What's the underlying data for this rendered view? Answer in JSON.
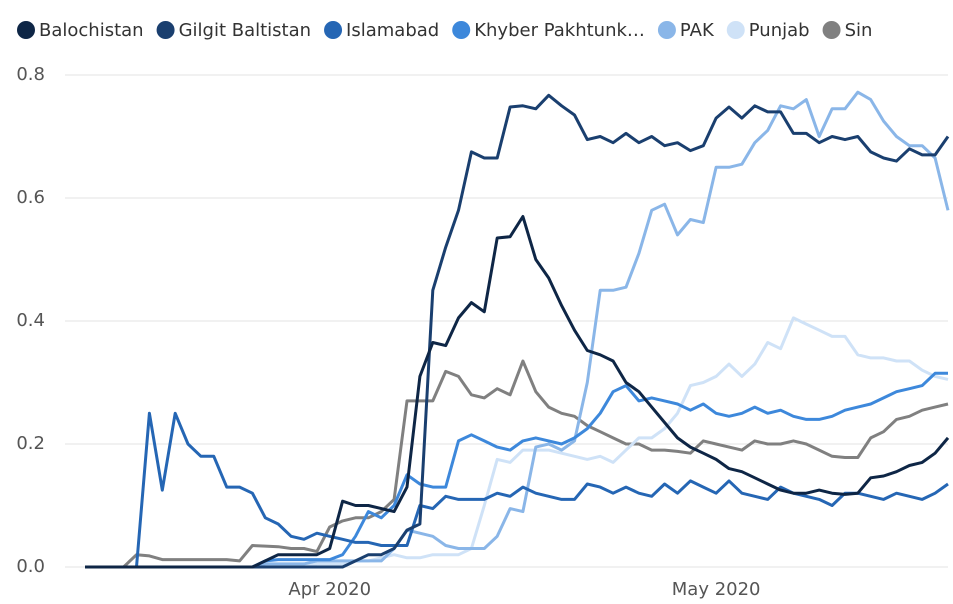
{
  "chart_data": {
    "type": "line",
    "categories": [
      null,
      null,
      null,
      null,
      null,
      null,
      null,
      null,
      null,
      null,
      null,
      null,
      null,
      null,
      null,
      null,
      null,
      null,
      null,
      "Apr 2020",
      null,
      null,
      null,
      null,
      null,
      null,
      null,
      null,
      null,
      null,
      null,
      null,
      null,
      null,
      null,
      null,
      null,
      null,
      null,
      null,
      null,
      null,
      null,
      null,
      null,
      null,
      null,
      null,
      null,
      "May 2020",
      null,
      null,
      null,
      null,
      null,
      null,
      null,
      null,
      null,
      null,
      null,
      null,
      null,
      null,
      null,
      null,
      null,
      null
    ],
    "series": [
      {
        "name": "Balochistan",
        "color": "#0e2646",
        "values": [
          0,
          0,
          0,
          0,
          0,
          0,
          0,
          0,
          0,
          0,
          0,
          0,
          0,
          0,
          0.01,
          0.02,
          0.02,
          0.02,
          0.02,
          0.03,
          0.107,
          0.1,
          0.1,
          0.095,
          0.09,
          0.13,
          0.31,
          0.365,
          0.36,
          0.405,
          0.43,
          0.415,
          0.535,
          0.537,
          0.57,
          0.5,
          0.47,
          0.425,
          0.385,
          0.352,
          0.345,
          0.335,
          0.3,
          0.285,
          0.26,
          0.235,
          0.21,
          0.195,
          0.185,
          0.175,
          0.16,
          0.155,
          0.145,
          0.135,
          0.125,
          0.12,
          0.12,
          0.125,
          0.12,
          0.118,
          0.12,
          0.145,
          0.148,
          0.155,
          0.165,
          0.17,
          0.185,
          0.21
        ]
      },
      {
        "name": "Gilgit Baltistan",
        "color": "#1a3f6f",
        "values": [
          0,
          0,
          0,
          0,
          0,
          0,
          0,
          0,
          0,
          0,
          0,
          0,
          0,
          0,
          0,
          0,
          0,
          0,
          0,
          0,
          0,
          0.01,
          0.02,
          0.02,
          0.03,
          0.06,
          0.07,
          0.45,
          0.52,
          0.58,
          0.675,
          0.665,
          0.665,
          0.748,
          0.75,
          0.745,
          0.767,
          0.75,
          0.735,
          0.695,
          0.7,
          0.69,
          0.705,
          0.69,
          0.7,
          0.685,
          0.69,
          0.677,
          0.685,
          0.73,
          0.748,
          0.73,
          0.75,
          0.74,
          0.74,
          0.705,
          0.705,
          0.69,
          0.7,
          0.695,
          0.7,
          0.675,
          0.665,
          0.66,
          0.68,
          0.67,
          0.67,
          0.7
        ]
      },
      {
        "name": "Islamabad",
        "color": "#2566b4",
        "values": [
          0,
          0,
          0,
          0,
          0,
          0.25,
          0.125,
          0.25,
          0.2,
          0.18,
          0.18,
          0.13,
          0.13,
          0.12,
          0.08,
          0.07,
          0.05,
          0.045,
          0.055,
          0.05,
          0.045,
          0.04,
          0.04,
          0.035,
          0.035,
          0.035,
          0.1,
          0.095,
          0.115,
          0.11,
          0.11,
          0.11,
          0.12,
          0.115,
          0.13,
          0.12,
          0.115,
          0.11,
          0.11,
          0.135,
          0.13,
          0.12,
          0.13,
          0.12,
          0.115,
          0.135,
          0.12,
          0.14,
          0.13,
          0.12,
          0.14,
          0.12,
          0.115,
          0.11,
          0.13,
          0.12,
          0.115,
          0.11,
          0.1,
          0.12,
          0.12,
          0.115,
          0.11,
          0.12,
          0.115,
          0.11,
          0.12,
          0.135
        ]
      },
      {
        "name": "Khyber Pakhtunk…",
        "color": "#3d88db",
        "values": [
          0,
          0,
          0,
          0,
          0,
          0,
          0,
          0,
          0,
          0,
          0,
          0,
          0,
          0,
          0.01,
          0.012,
          0.012,
          0.012,
          0.012,
          0.012,
          0.02,
          0.05,
          0.09,
          0.08,
          0.1,
          0.15,
          0.135,
          0.13,
          0.13,
          0.205,
          0.215,
          0.205,
          0.195,
          0.19,
          0.205,
          0.21,
          0.205,
          0.2,
          0.21,
          0.225,
          0.25,
          0.285,
          0.295,
          0.27,
          0.275,
          0.27,
          0.265,
          0.255,
          0.265,
          0.25,
          0.245,
          0.25,
          0.26,
          0.25,
          0.255,
          0.245,
          0.24,
          0.24,
          0.245,
          0.255,
          0.26,
          0.265,
          0.275,
          0.285,
          0.29,
          0.295,
          0.315,
          0.315
        ]
      },
      {
        "name": "PAK",
        "color": "#8ab6e8",
        "values": [
          0,
          0,
          0,
          0,
          0,
          0,
          0,
          0,
          0,
          0,
          0,
          0,
          0,
          0,
          0.005,
          0.005,
          0.005,
          0.005,
          0.01,
          0.01,
          0.01,
          0.01,
          0.01,
          0.01,
          0.03,
          0.06,
          0.055,
          0.05,
          0.035,
          0.03,
          0.03,
          0.03,
          0.05,
          0.095,
          0.09,
          0.195,
          0.2,
          0.19,
          0.205,
          0.3,
          0.45,
          0.45,
          0.455,
          0.51,
          0.58,
          0.59,
          0.54,
          0.565,
          0.56,
          0.65,
          0.65,
          0.655,
          0.69,
          0.71,
          0.75,
          0.745,
          0.76,
          0.7,
          0.745,
          0.745,
          0.772,
          0.76,
          0.725,
          0.7,
          0.685,
          0.685,
          0.665,
          0.58
        ]
      },
      {
        "name": "Punjab",
        "color": "#cfe2f7",
        "values": [
          0,
          0,
          0,
          0,
          0,
          0,
          0,
          0,
          0,
          0,
          0,
          0,
          0,
          0,
          0,
          0,
          0,
          0,
          0.005,
          0.005,
          0.005,
          0.01,
          0.01,
          0.015,
          0.02,
          0.015,
          0.015,
          0.02,
          0.02,
          0.02,
          0.03,
          0.1,
          0.175,
          0.17,
          0.19,
          0.19,
          0.19,
          0.185,
          0.18,
          0.175,
          0.18,
          0.17,
          0.19,
          0.21,
          0.21,
          0.225,
          0.25,
          0.295,
          0.3,
          0.31,
          0.33,
          0.31,
          0.33,
          0.365,
          0.355,
          0.405,
          0.395,
          0.385,
          0.375,
          0.375,
          0.345,
          0.34,
          0.34,
          0.335,
          0.335,
          0.32,
          0.31,
          0.305
        ]
      },
      {
        "name": "Sin",
        "color": "#808080",
        "values": [
          0,
          0,
          0,
          0,
          0.02,
          0.018,
          0.012,
          0.012,
          0.012,
          0.012,
          0.012,
          0.012,
          0.01,
          0.035,
          0.034,
          0.033,
          0.03,
          0.03,
          0.025,
          0.065,
          0.075,
          0.08,
          0.08,
          0.09,
          0.11,
          0.27,
          0.27,
          0.27,
          0.318,
          0.31,
          0.28,
          0.275,
          0.29,
          0.28,
          0.335,
          0.285,
          0.26,
          0.25,
          0.245,
          0.23,
          0.22,
          0.21,
          0.2,
          0.2,
          0.19,
          0.19,
          0.188,
          0.185,
          0.205,
          0.2,
          0.195,
          0.19,
          0.205,
          0.2,
          0.2,
          0.205,
          0.2,
          0.19,
          0.18,
          0.178,
          0.178,
          0.21,
          0.22,
          0.24,
          0.245,
          0.255,
          0.26,
          0.265
        ]
      }
    ],
    "ylim": [
      0,
      0.8
    ],
    "yticks": [
      {
        "value": 0,
        "label": "0.0"
      },
      0.2,
      0.4,
      0.6,
      0.8
    ],
    "grid": true,
    "legend": "top"
  }
}
